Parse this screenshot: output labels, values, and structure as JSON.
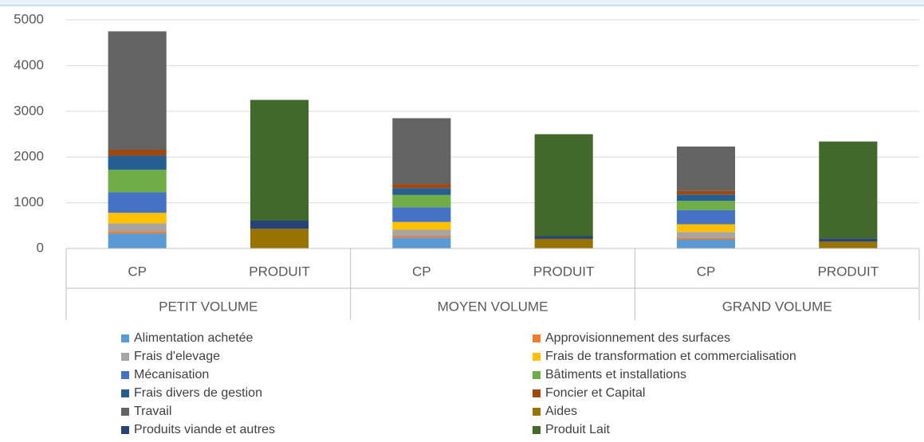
{
  "chart_data": {
    "type": "stacked_bar",
    "categories": [
      "CP",
      "PRODUIT",
      "CP",
      "PRODUIT",
      "CP",
      "PRODUIT"
    ],
    "groups": [
      "PETIT VOLUME",
      "MOYEN VOLUME",
      "GRAND VOLUME"
    ],
    "ylim": [
      0,
      5000
    ],
    "yticks": [
      0,
      1000,
      2000,
      3000,
      4000,
      5000
    ],
    "grid": true,
    "series": [
      {
        "name": "Alimentation achetée",
        "color": "#5B9BD5",
        "values": [
          330,
          null,
          240,
          null,
          200,
          null
        ]
      },
      {
        "name": "Approvisionnement des surfaces",
        "color": "#ED7D31",
        "values": [
          50,
          null,
          40,
          null,
          40,
          null
        ]
      },
      {
        "name": "Frais d'elevage",
        "color": "#A5A5A5",
        "values": [
          170,
          null,
          130,
          null,
          120,
          null
        ]
      },
      {
        "name": "Frais de transformation et commercialisation",
        "color": "#FFC000",
        "values": [
          230,
          null,
          170,
          null,
          170,
          null
        ]
      },
      {
        "name": "Mécanisation",
        "color": "#4472C4",
        "values": [
          450,
          null,
          320,
          null,
          310,
          null
        ]
      },
      {
        "name": "Bâtiments et installations",
        "color": "#70AD47",
        "values": [
          490,
          null,
          270,
          null,
          200,
          null
        ]
      },
      {
        "name": "Frais divers de gestion",
        "color": "#255E91",
        "values": [
          310,
          null,
          150,
          null,
          140,
          null
        ]
      },
      {
        "name": "Foncier et Capital",
        "color": "#9E480E",
        "values": [
          130,
          null,
          90,
          null,
          80,
          null
        ]
      },
      {
        "name": "Travail",
        "color": "#636363",
        "values": [
          2590,
          null,
          1440,
          null,
          970,
          null
        ]
      },
      {
        "name": "Aides",
        "color": "#997300",
        "values": [
          null,
          430,
          null,
          210,
          null,
          150
        ]
      },
      {
        "name": "Produits viande et autres",
        "color": "#264478",
        "values": [
          null,
          180,
          null,
          60,
          null,
          70
        ]
      },
      {
        "name": "Produit Lait",
        "color": "#43682B",
        "values": [
          null,
          2640,
          null,
          2230,
          null,
          2120
        ]
      }
    ]
  }
}
